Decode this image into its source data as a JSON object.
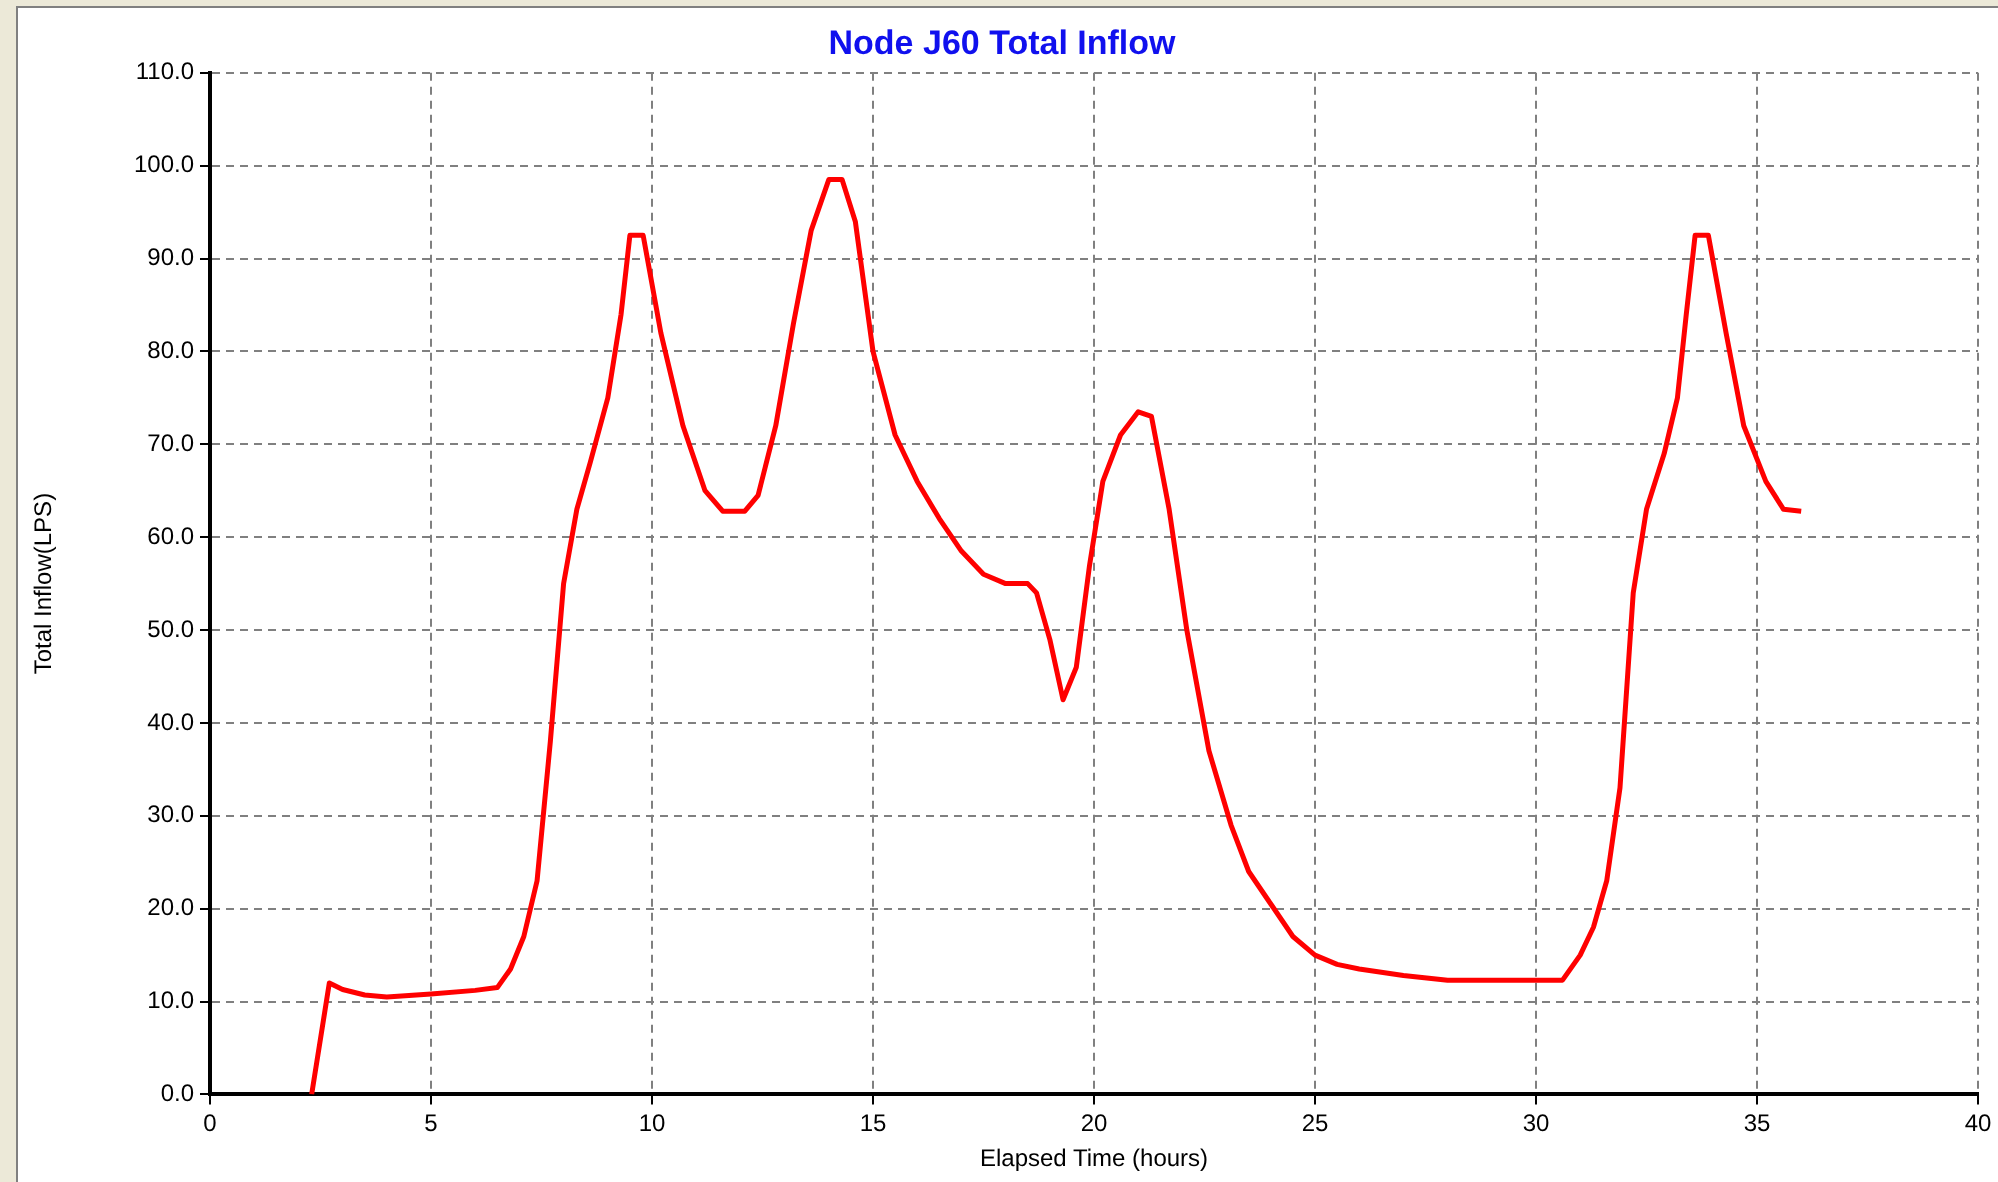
{
  "chart_data": {
    "type": "line",
    "title": "Node J60 Total Inflow",
    "xlabel": "Elapsed Time (hours)",
    "ylabel": "Total Inflow(LPS)",
    "xlim": [
      0,
      40
    ],
    "xticks": [
      0,
      5,
      10,
      15,
      20,
      25,
      30,
      35,
      40
    ],
    "ylim": [
      0,
      110
    ],
    "yticks": [
      {
        "value": 0,
        "label": "0.0"
      },
      {
        "value": 10,
        "label": "10.0"
      },
      {
        "value": 20,
        "label": "20.0"
      },
      {
        "value": 30,
        "label": "30.0"
      },
      {
        "value": 40,
        "label": "40.0"
      },
      {
        "value": 50,
        "label": "50.0"
      },
      {
        "value": 60,
        "label": "60.0"
      },
      {
        "value": 70,
        "label": "70.0"
      },
      {
        "value": 80,
        "label": "80.0"
      },
      {
        "value": 90,
        "label": "90.0"
      },
      {
        "value": 100,
        "label": "100.0"
      },
      {
        "value": 110,
        "label": "110.0"
      }
    ],
    "grid": true,
    "legend": false,
    "marker": "none",
    "line_style": "solid",
    "x": [
      2.3,
      2.7,
      3.0,
      3.5,
      4.0,
      5,
      6,
      6.5,
      6.8,
      7.1,
      7.4,
      7.7,
      8.0,
      8.3,
      8.6,
      9.0,
      9.3,
      9.5,
      9.8,
      10.2,
      10.7,
      11.2,
      11.6,
      12.1,
      12.4,
      12.8,
      13.2,
      13.6,
      14.0,
      14.3,
      14.6,
      15.0,
      15.5,
      16.0,
      16.5,
      17.0,
      17.5,
      18.0,
      18.5,
      18.7,
      19.0,
      19.3,
      19.6,
      19.9,
      20.2,
      20.6,
      21.0,
      21.3,
      21.7,
      22.1,
      22.6,
      23.1,
      23.5,
      24.0,
      24.5,
      25.0,
      25.5,
      26.0,
      27.0,
      28.0,
      30.0,
      30.6,
      31.0,
      31.3,
      31.6,
      31.9,
      32.2,
      32.5,
      32.9,
      33.2,
      33.4,
      33.6,
      33.9,
      34.3,
      34.7,
      35.2,
      35.6,
      36.0
    ],
    "series": [
      {
        "color": "#ff0000",
        "values": [
          0,
          12,
          11.3,
          10.7,
          10.5,
          10.8,
          11.2,
          11.5,
          13.5,
          17,
          23,
          38,
          55,
          63,
          68,
          75,
          84,
          92.5,
          92.5,
          82,
          72,
          65,
          62.8,
          62.8,
          64.5,
          72,
          83,
          93,
          98.5,
          98.5,
          94,
          80,
          71,
          66,
          62,
          58.5,
          56,
          55,
          55,
          54,
          49,
          42.5,
          46,
          57,
          66,
          71,
          73.5,
          73,
          63,
          50,
          37,
          29,
          24,
          20.5,
          17,
          15,
          14,
          13.5,
          12.8,
          12.3,
          12.3,
          12.3,
          15,
          18,
          23,
          33,
          54,
          63,
          69,
          75,
          84,
          92.5,
          92.5,
          82,
          72,
          66,
          63,
          62.8
        ]
      }
    ]
  }
}
